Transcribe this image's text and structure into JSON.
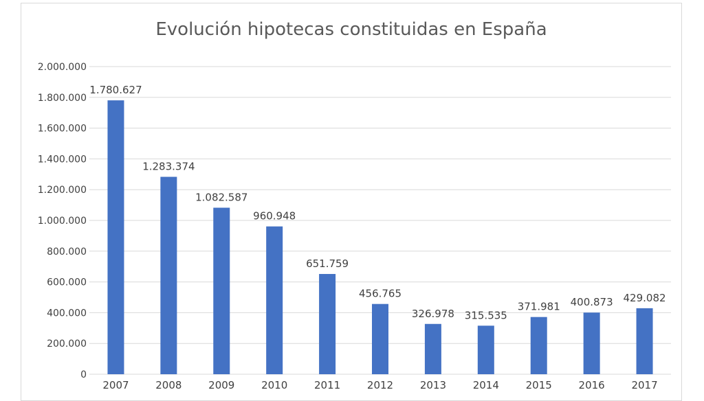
{
  "chart_data": {
    "type": "bar",
    "title": "Evolución hipotecas constituidas en España",
    "xlabel": "",
    "ylabel": "",
    "ylim": [
      0,
      2000000
    ],
    "yticks": [
      0,
      200000,
      400000,
      600000,
      800000,
      1000000,
      1200000,
      1400000,
      1600000,
      1800000,
      2000000
    ],
    "ytick_labels": [
      "0",
      "200.000",
      "400.000",
      "600.000",
      "800.000",
      "1.000.000",
      "1.200.000",
      "1.400.000",
      "1.600.000",
      "1.800.000",
      "2.000.000"
    ],
    "categories": [
      "2007",
      "2008",
      "2009",
      "2010",
      "2011",
      "2012",
      "2013",
      "2014",
      "2015",
      "2016",
      "2017"
    ],
    "values": [
      1780627,
      1283374,
      1082587,
      960948,
      651759,
      456765,
      326978,
      315535,
      371981,
      400873,
      429082
    ],
    "data_labels": [
      "1.780.627",
      "1.283.374",
      "1.082.587",
      "960.948",
      "651.759",
      "456.765",
      "326.978",
      "315.535",
      "371.981",
      "400.873",
      "429.082"
    ],
    "grid": true,
    "legend": false,
    "bar_color": "#4472c4",
    "grid_color": "#d9d9d9"
  }
}
